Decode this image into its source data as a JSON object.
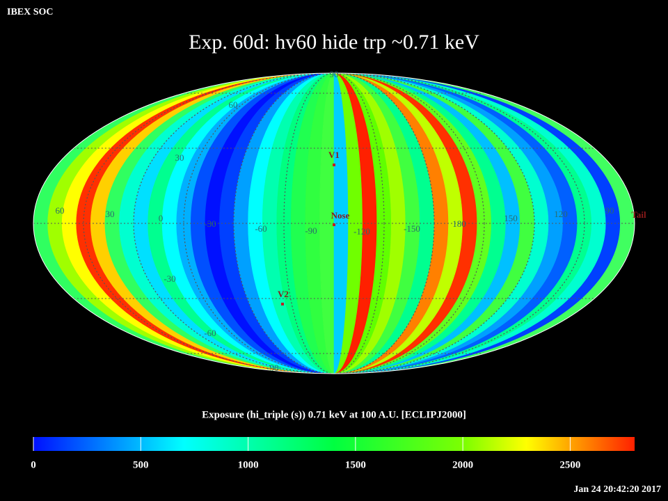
{
  "header": {
    "org": "IBEX SOC",
    "title": "Exp.   60d: hv60 hide trp ~0.71 keV"
  },
  "map": {
    "lat_labels": [
      90,
      60,
      30,
      -30,
      -60,
      -90
    ],
    "lon_labels": [
      60,
      30,
      0,
      -30,
      -60,
      -90,
      -120,
      -150,
      180,
      150,
      120,
      90
    ],
    "markers": [
      "V1",
      "Nose",
      "V2",
      "Tail"
    ]
  },
  "colorbar": {
    "title": "Exposure (hi_triple (s))  0.71 keV at 100 A.U. [ECLIPJ2000]",
    "range": [
      0,
      2800
    ],
    "ticks": [
      0,
      500,
      1000,
      1500,
      2000,
      2500
    ]
  },
  "footer": {
    "timestamp": "Jan 24 20:42:20 2017"
  }
}
